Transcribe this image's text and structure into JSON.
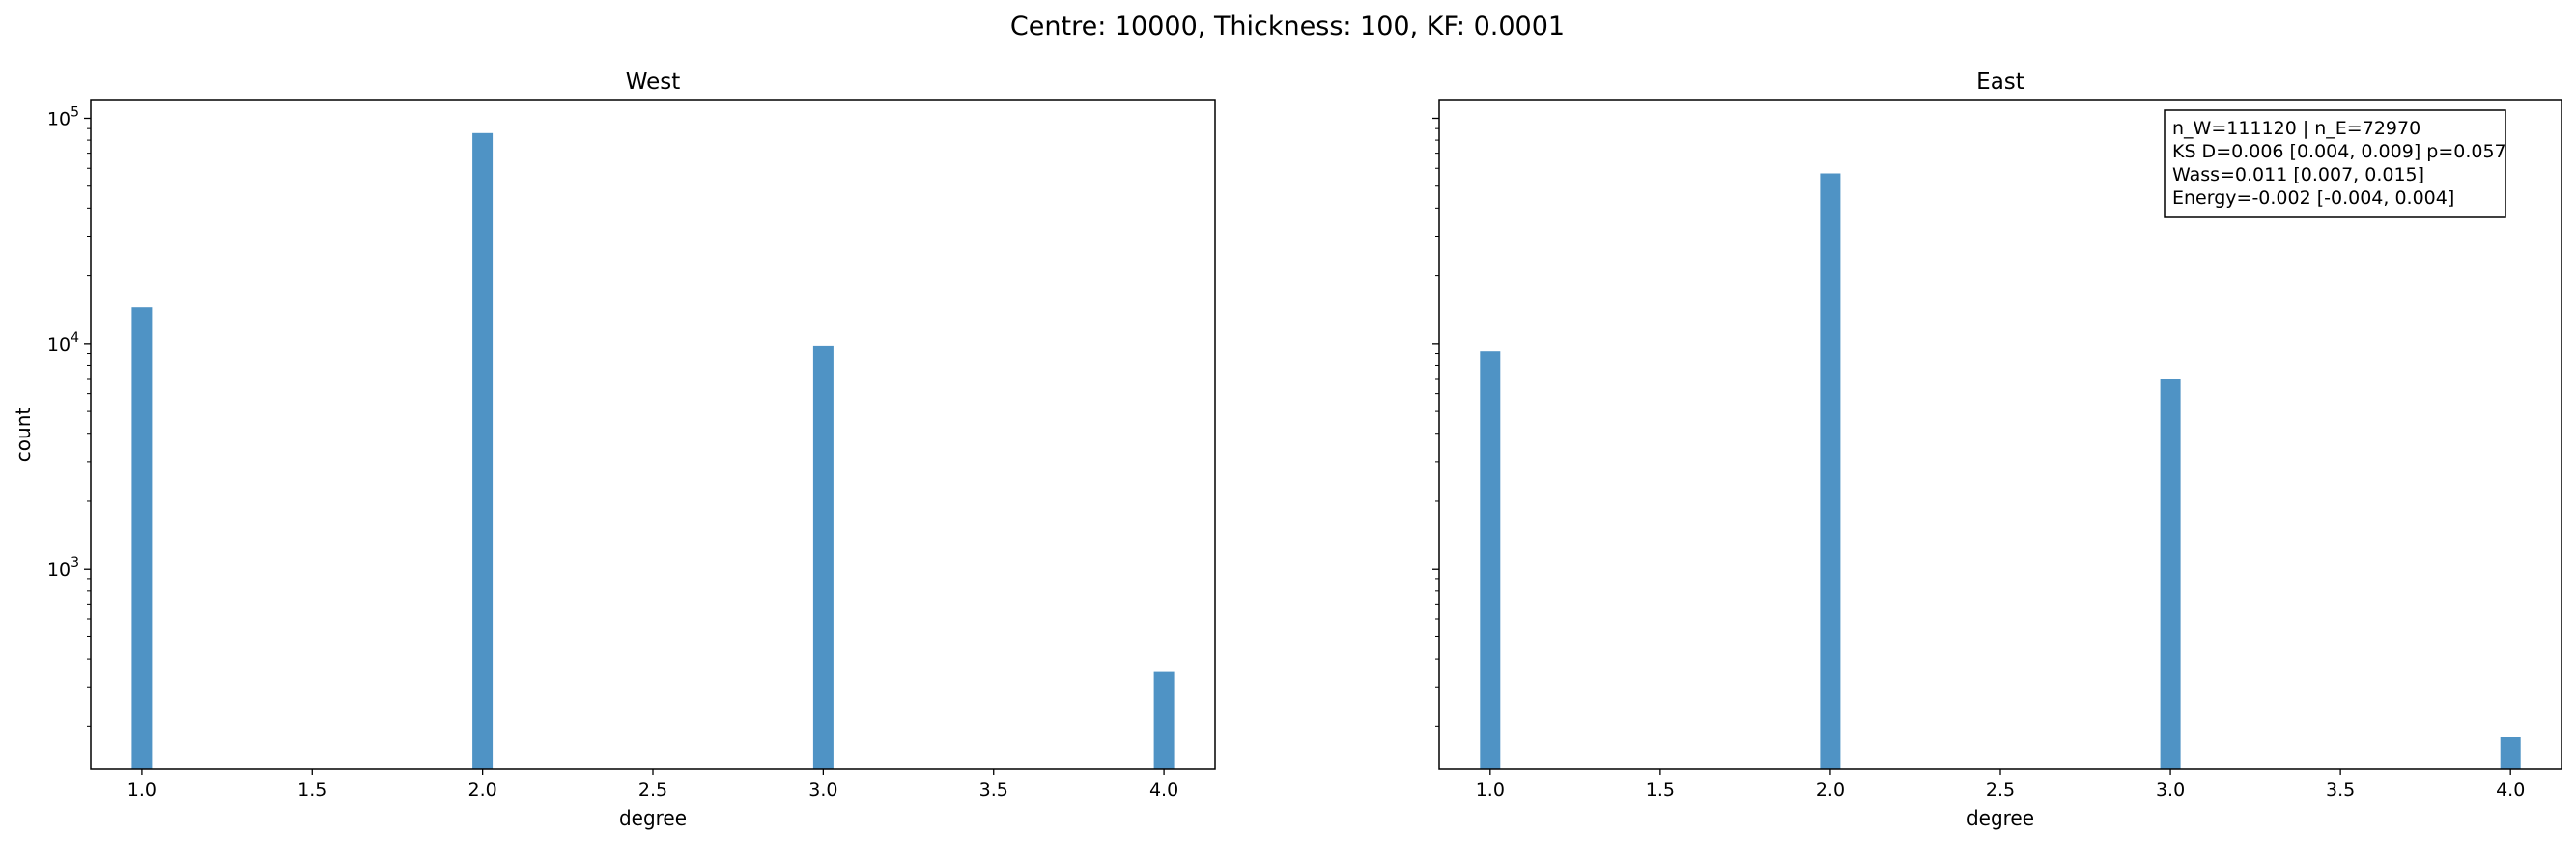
{
  "suptitle": "Centre: 10000, Thickness: 100, KF: 0.0001",
  "chart_data": [
    {
      "type": "bar",
      "title": "West",
      "xlabel": "degree",
      "ylabel": "count",
      "yscale": "log",
      "ylim": [
        130,
        120000
      ],
      "xlim": [
        0.85,
        4.15
      ],
      "xticks": [
        "1.0",
        "1.5",
        "2.0",
        "2.5",
        "3.0",
        "3.5",
        "4.0"
      ],
      "yticks": [
        {
          "base": "10",
          "exp": "3",
          "value": 1000
        },
        {
          "base": "10",
          "exp": "4",
          "value": 10000
        },
        {
          "base": "10",
          "exp": "5",
          "value": 100000
        }
      ],
      "bar_color": "#4f93c5",
      "x": [
        1.0,
        2.0,
        3.0,
        4.0
      ],
      "values": [
        14500,
        86000,
        9800,
        350
      ]
    },
    {
      "type": "bar",
      "title": "East",
      "xlabel": "degree",
      "ylabel": "",
      "yscale": "log",
      "ylim": [
        130,
        120000
      ],
      "xlim": [
        0.85,
        4.15
      ],
      "xticks": [
        "1.0",
        "1.5",
        "2.0",
        "2.5",
        "3.0",
        "3.5",
        "4.0"
      ],
      "yticks": [],
      "bar_color": "#4f93c5",
      "x": [
        1.0,
        2.0,
        3.0,
        4.0
      ],
      "values": [
        9300,
        57000,
        7000,
        180
      ],
      "annotation": [
        "n_W=111120 | n_E=72970",
        "KS D=0.006 [0.004, 0.009]  p=0.057",
        "Wass=0.011 [0.007, 0.015]",
        "Energy=-0.002 [-0.004, 0.004]"
      ],
      "annotation_position": "top-right"
    }
  ]
}
